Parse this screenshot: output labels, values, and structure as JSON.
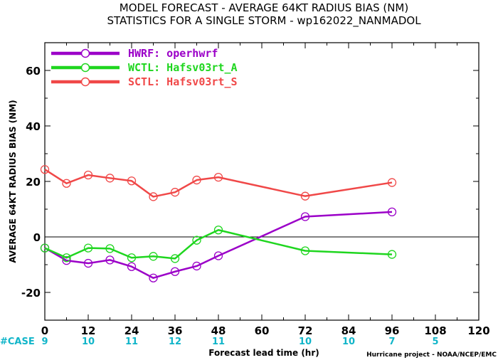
{
  "chart_data": {
    "type": "line",
    "title": "MODEL FORECAST - AVERAGE 64KT RADIUS BIAS (NM)",
    "subtitle": "STATISTICS FOR A SINGLE STORM - wp162022_NANMADOL",
    "xlabel": "Forecast lead time (hr)",
    "ylabel": "AVERAGE 64KT RADIUS BIAS (NM)",
    "xlim": [
      0,
      120
    ],
    "ylim": [
      -30,
      70
    ],
    "x_ticks": [
      "0",
      "12",
      "24",
      "36",
      "48",
      "60",
      "72",
      "84",
      "96",
      "108",
      "120"
    ],
    "y_ticks": [
      "-20",
      "0",
      "20",
      "40",
      "60"
    ],
    "zero_line": true,
    "legend_position": "top-left",
    "series": [
      {
        "name": "HWRF: operhwrf",
        "color": "#9b00c8",
        "x": [
          0,
          6,
          12,
          18,
          24,
          30,
          36,
          42,
          48,
          72,
          96
        ],
        "y": [
          -4,
          -8.5,
          -9.5,
          -8.3,
          -10.7,
          -14.8,
          -12.5,
          -10.5,
          -6.8,
          7.3,
          9
        ]
      },
      {
        "name": "WCTL: Hafsv03rt_A",
        "color": "#1fd61f",
        "x": [
          0,
          6,
          12,
          18,
          24,
          30,
          36,
          42,
          48,
          72,
          96
        ],
        "y": [
          -4,
          -7.5,
          -4,
          -4.2,
          -7.5,
          -7,
          -7.8,
          -1.2,
          2.5,
          -5,
          -6.3
        ]
      },
      {
        "name": "SCTL: Hafsv03rt_S",
        "color": "#f04848",
        "x": [
          0,
          6,
          12,
          18,
          24,
          30,
          36,
          42,
          48,
          72,
          96
        ],
        "y": [
          24.3,
          19.3,
          22.3,
          21.2,
          20.2,
          14.5,
          16.1,
          20.5,
          21.5,
          14.7,
          19.6
        ]
      }
    ],
    "cases": {
      "label": "#CASE",
      "x": [
        0,
        12,
        24,
        36,
        48,
        72,
        84,
        96,
        108
      ],
      "values": [
        "9",
        "10",
        "11",
        "12",
        "11",
        "10",
        "10",
        "7",
        "5"
      ]
    },
    "credit": "Hurricane project - NOAA/NCEP/EMC"
  }
}
